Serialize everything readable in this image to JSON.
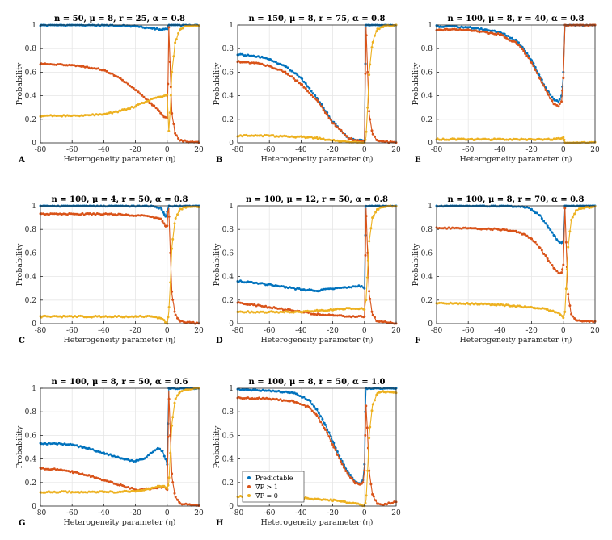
{
  "figure": {
    "colors": {
      "predictable": "#0072BD",
      "grad_gt_1": "#D95319",
      "grad_eq_0": "#EDB120",
      "grid": "#e6e6e6",
      "axis": "#262626"
    },
    "legend": {
      "entries": [
        "Predictable",
        "∇P > 1",
        "∇P = 0"
      ]
    }
  },
  "chart_data": [
    {
      "type": "line",
      "panel": "A",
      "title": "n = 50, μ = 8, r = 25, α = 0.8",
      "xlabel": "Heterogeneity parameter (η)",
      "ylabel": "Probability",
      "xlim": [
        -80,
        20
      ],
      "ylim": [
        0,
        1
      ],
      "xticks": [
        "-80",
        "-60",
        "-40",
        "-20",
        "0",
        "20"
      ],
      "yticks": [
        "0",
        "0.2",
        "0.4",
        "0.6",
        "0.8",
        "1"
      ],
      "series": [
        {
          "name": "Predictable",
          "x": [
            -80,
            -60,
            -40,
            -20,
            -8,
            -3,
            0,
            1,
            3,
            10,
            20
          ],
          "values": [
            1.0,
            1.0,
            1.0,
            0.99,
            0.97,
            0.96,
            0.97,
            1.0,
            1.0,
            1.0,
            1.0
          ]
        },
        {
          "name": "∇P > 1",
          "x": [
            -80,
            -60,
            -40,
            -30,
            -20,
            -10,
            -5,
            -2,
            0,
            0.5,
            1,
            2,
            3,
            5,
            8,
            20
          ],
          "values": [
            0.67,
            0.66,
            0.62,
            0.55,
            0.45,
            0.33,
            0.27,
            0.22,
            0.22,
            0.5,
            0.98,
            0.6,
            0.25,
            0.08,
            0.02,
            0.0
          ]
        },
        {
          "name": "∇P = 0",
          "x": [
            -80,
            -60,
            -40,
            -30,
            -20,
            -10,
            -5,
            0,
            1,
            2,
            3,
            5,
            8,
            12,
            20
          ],
          "values": [
            0.23,
            0.23,
            0.24,
            0.27,
            0.31,
            0.37,
            0.39,
            0.41,
            0.1,
            0.3,
            0.6,
            0.85,
            0.96,
            0.99,
            1.0
          ]
        }
      ]
    },
    {
      "type": "line",
      "panel": "B",
      "title": "n = 150, μ = 8, r = 75, α = 0.8",
      "xlabel": "Heterogeneity parameter (η)",
      "ylabel": "Probability",
      "xlim": [
        -80,
        20
      ],
      "ylim": [
        0,
        1
      ],
      "xticks": [
        "-80",
        "-60",
        "-40",
        "-20",
        "0",
        "20"
      ],
      "yticks": [
        "0",
        "0.2",
        "0.4",
        "0.6",
        "0.8",
        "1"
      ],
      "series": [
        {
          "name": "Predictable",
          "x": [
            -80,
            -70,
            -60,
            -50,
            -40,
            -30,
            -20,
            -10,
            -5,
            0,
            0.5,
            1,
            20
          ],
          "values": [
            0.75,
            0.74,
            0.71,
            0.65,
            0.55,
            0.38,
            0.18,
            0.04,
            0.02,
            0.02,
            0.6,
            1.0,
            1.0
          ]
        },
        {
          "name": "∇P > 1",
          "x": [
            -80,
            -70,
            -60,
            -50,
            -40,
            -30,
            -20,
            -10,
            -5,
            0,
            0.5,
            1,
            2,
            3,
            5,
            8,
            20
          ],
          "values": [
            0.69,
            0.68,
            0.65,
            0.6,
            0.5,
            0.36,
            0.17,
            0.04,
            0.02,
            0.01,
            0.5,
            0.98,
            0.6,
            0.25,
            0.08,
            0.02,
            0.0
          ]
        },
        {
          "name": "∇P = 0",
          "x": [
            -80,
            -60,
            -40,
            -30,
            -20,
            -10,
            0,
            1,
            2,
            3,
            5,
            8,
            12,
            20
          ],
          "values": [
            0.06,
            0.06,
            0.05,
            0.04,
            0.02,
            0.01,
            0.0,
            0.05,
            0.3,
            0.6,
            0.85,
            0.96,
            0.99,
            1.0
          ]
        }
      ]
    },
    {
      "type": "line",
      "panel": "E",
      "title": "n = 100, μ = 8, r = 40, α = 0.8",
      "xlabel": "Heterogeneity parameter (η)",
      "ylabel": "Probability",
      "xlim": [
        -80,
        20
      ],
      "ylim": [
        0,
        1
      ],
      "xticks": [
        "-80",
        "-60",
        "-40",
        "-20",
        "0",
        "20"
      ],
      "yticks": [
        "0",
        "0.2",
        "0.4",
        "0.6",
        "0.8",
        "1"
      ],
      "series": [
        {
          "name": "Predictable",
          "x": [
            -80,
            -60,
            -40,
            -30,
            -25,
            -20,
            -15,
            -10,
            -6,
            -3,
            -1,
            0,
            1,
            20
          ],
          "values": [
            0.99,
            0.98,
            0.94,
            0.87,
            0.8,
            0.7,
            0.57,
            0.44,
            0.37,
            0.35,
            0.4,
            0.6,
            1.0,
            1.0
          ]
        },
        {
          "name": "∇P > 1",
          "x": [
            -80,
            -60,
            -40,
            -30,
            -25,
            -20,
            -15,
            -10,
            -6,
            -3,
            -1,
            0,
            1,
            20
          ],
          "values": [
            0.96,
            0.96,
            0.92,
            0.85,
            0.78,
            0.68,
            0.55,
            0.42,
            0.33,
            0.31,
            0.36,
            0.55,
            1.0,
            1.0
          ]
        },
        {
          "name": "∇P = 0",
          "x": [
            -80,
            -60,
            -40,
            -20,
            -5,
            -1,
            0,
            1,
            3,
            10,
            20
          ],
          "values": [
            0.03,
            0.03,
            0.03,
            0.03,
            0.03,
            0.04,
            0.05,
            0.0,
            0.0,
            0.0,
            0.0
          ]
        }
      ]
    },
    {
      "type": "line",
      "panel": "C",
      "title": "n = 100, μ = 4, r = 50, α = 0.8",
      "xlabel": "Heterogeneity parameter (η)",
      "ylabel": "Probability",
      "xlim": [
        -80,
        20
      ],
      "ylim": [
        0,
        1
      ],
      "xticks": [
        "-80",
        "-60",
        "-40",
        "-20",
        "0",
        "20"
      ],
      "yticks": [
        "0",
        "0.2",
        "0.4",
        "0.6",
        "0.8",
        "1"
      ],
      "series": [
        {
          "name": "Predictable",
          "x": [
            -80,
            -40,
            -10,
            -4,
            -2,
            -1,
            0,
            1,
            20
          ],
          "values": [
            1.0,
            1.0,
            1.0,
            0.98,
            0.94,
            0.91,
            0.95,
            1.0,
            1.0
          ]
        },
        {
          "name": "∇P > 1",
          "x": [
            -80,
            -40,
            -20,
            -10,
            -4,
            -2,
            -1,
            0,
            0.5,
            1,
            2,
            3,
            5,
            8,
            20
          ],
          "values": [
            0.93,
            0.93,
            0.92,
            0.91,
            0.89,
            0.85,
            0.82,
            0.83,
            0.95,
            0.98,
            0.6,
            0.25,
            0.08,
            0.02,
            0.0
          ]
        },
        {
          "name": "∇P = 0",
          "x": [
            -80,
            -40,
            -20,
            -10,
            -5,
            -2,
            0,
            1,
            2,
            3,
            5,
            8,
            12,
            20
          ],
          "values": [
            0.06,
            0.06,
            0.06,
            0.06,
            0.05,
            0.03,
            0.0,
            0.1,
            0.35,
            0.65,
            0.88,
            0.97,
            0.99,
            0.99
          ]
        }
      ]
    },
    {
      "type": "line",
      "panel": "D",
      "title": "n = 100, μ = 12, r = 50, α = 0.8",
      "xlabel": "Heterogeneity parameter (η)",
      "ylabel": "Probability",
      "xlim": [
        -80,
        20
      ],
      "ylim": [
        0,
        1
      ],
      "xticks": [
        "-80",
        "-60",
        "-40",
        "-20",
        "0",
        "20"
      ],
      "yticks": [
        "0",
        "0.2",
        "0.4",
        "0.6",
        "0.8",
        "1"
      ],
      "series": [
        {
          "name": "Predictable",
          "x": [
            -80,
            -70,
            -60,
            -50,
            -40,
            -30,
            -20,
            -10,
            -2,
            0,
            0.5,
            1,
            20
          ],
          "values": [
            0.36,
            0.35,
            0.33,
            0.31,
            0.29,
            0.28,
            0.3,
            0.31,
            0.32,
            0.3,
            0.7,
            1.0,
            1.0
          ]
        },
        {
          "name": "∇P > 1",
          "x": [
            -80,
            -70,
            -60,
            -50,
            -40,
            -30,
            -20,
            -10,
            -2,
            0,
            0.5,
            1,
            2,
            3,
            5,
            8,
            20
          ],
          "values": [
            0.18,
            0.16,
            0.14,
            0.12,
            0.1,
            0.08,
            0.07,
            0.06,
            0.06,
            0.06,
            0.5,
            0.98,
            0.6,
            0.25,
            0.08,
            0.02,
            0.0
          ]
        },
        {
          "name": "∇P = 0",
          "x": [
            -80,
            -60,
            -40,
            -30,
            -20,
            -10,
            -2,
            0,
            1,
            2,
            3,
            5,
            8,
            12,
            20
          ],
          "values": [
            0.1,
            0.1,
            0.1,
            0.11,
            0.12,
            0.13,
            0.13,
            0.12,
            0.2,
            0.45,
            0.7,
            0.9,
            0.97,
            0.99,
            1.0
          ]
        }
      ]
    },
    {
      "type": "line",
      "panel": "F",
      "title": "n = 100, μ = 8, r = 70, α = 0.8",
      "xlabel": "Heterogeneity parameter (η)",
      "ylabel": "Probability",
      "xlim": [
        -80,
        20
      ],
      "ylim": [
        0,
        1
      ],
      "xticks": [
        "-80",
        "-60",
        "-40",
        "-20",
        "0",
        "20"
      ],
      "yticks": [
        "0",
        "0.2",
        "0.4",
        "0.6",
        "0.8",
        "1"
      ],
      "series": [
        {
          "name": "Predictable",
          "x": [
            -80,
            -40,
            -25,
            -20,
            -15,
            -10,
            -6,
            -3,
            -1,
            0,
            1,
            20
          ],
          "values": [
            1.0,
            1.0,
            0.99,
            0.97,
            0.92,
            0.83,
            0.75,
            0.7,
            0.68,
            0.7,
            1.0,
            1.0
          ]
        },
        {
          "name": "∇P > 1",
          "x": [
            -80,
            -60,
            -40,
            -30,
            -25,
            -20,
            -15,
            -10,
            -6,
            -3,
            -1,
            0,
            1,
            2,
            3,
            5,
            8,
            12,
            20
          ],
          "values": [
            0.81,
            0.81,
            0.8,
            0.78,
            0.76,
            0.72,
            0.65,
            0.55,
            0.47,
            0.43,
            0.43,
            0.5,
            0.98,
            0.6,
            0.25,
            0.08,
            0.03,
            0.02,
            0.02
          ]
        },
        {
          "name": "∇P = 0",
          "x": [
            -80,
            -60,
            -40,
            -20,
            -10,
            -5,
            -2,
            0,
            1,
            2,
            3,
            5,
            8,
            12,
            20
          ],
          "values": [
            0.17,
            0.17,
            0.16,
            0.14,
            0.12,
            0.1,
            0.08,
            0.05,
            0.1,
            0.35,
            0.65,
            0.88,
            0.96,
            0.98,
            0.99
          ]
        }
      ]
    },
    {
      "type": "line",
      "panel": "G",
      "title": "n = 100, μ = 8, r = 50, α = 0.6",
      "xlabel": "Heterogeneity parameter (η)",
      "ylabel": "Probability",
      "xlim": [
        -80,
        20
      ],
      "ylim": [
        0,
        1
      ],
      "xticks": [
        "-80",
        "-60",
        "-40",
        "-20",
        "0",
        "20"
      ],
      "yticks": [
        "0",
        "0.2",
        "0.4",
        "0.6",
        "0.8",
        "1"
      ],
      "series": [
        {
          "name": "Predictable",
          "x": [
            -80,
            -70,
            -60,
            -50,
            -40,
            -30,
            -20,
            -15,
            -10,
            -6,
            -3,
            -1,
            0,
            0.5,
            1,
            20
          ],
          "values": [
            0.53,
            0.53,
            0.52,
            0.49,
            0.45,
            0.41,
            0.38,
            0.4,
            0.45,
            0.49,
            0.47,
            0.4,
            0.35,
            0.7,
            1.0,
            1.0
          ]
        },
        {
          "name": "∇P > 1",
          "x": [
            -80,
            -70,
            -60,
            -50,
            -40,
            -30,
            -20,
            -15,
            -10,
            -5,
            -2,
            0,
            0.5,
            1,
            2,
            3,
            5,
            8,
            20
          ],
          "values": [
            0.32,
            0.31,
            0.29,
            0.26,
            0.22,
            0.18,
            0.14,
            0.14,
            0.15,
            0.16,
            0.16,
            0.14,
            0.5,
            0.98,
            0.6,
            0.25,
            0.08,
            0.02,
            0.0
          ]
        },
        {
          "name": "∇P = 0",
          "x": [
            -80,
            -60,
            -40,
            -30,
            -20,
            -10,
            -5,
            -2,
            0,
            1,
            2,
            3,
            5,
            8,
            12,
            20
          ],
          "values": [
            0.12,
            0.12,
            0.12,
            0.12,
            0.13,
            0.15,
            0.17,
            0.17,
            0.15,
            0.2,
            0.45,
            0.7,
            0.9,
            0.97,
            0.99,
            1.0
          ]
        }
      ]
    },
    {
      "type": "line",
      "panel": "H",
      "title": "n = 100, μ = 8, r = 50, α = 1.0",
      "xlabel": "Heterogeneity parameter (η)",
      "ylabel": "Probability",
      "xlim": [
        -80,
        20
      ],
      "ylim": [
        0,
        1
      ],
      "xticks": [
        "-80",
        "-60",
        "-40",
        "-20",
        "0",
        "20"
      ],
      "yticks": [
        "0",
        "0.2",
        "0.4",
        "0.6",
        "0.8",
        "1"
      ],
      "legend": "bottom-left",
      "series": [
        {
          "name": "Predictable",
          "x": [
            -80,
            -60,
            -45,
            -35,
            -30,
            -25,
            -20,
            -15,
            -10,
            -6,
            -3,
            -1,
            0,
            0.5,
            1,
            20
          ],
          "values": [
            0.99,
            0.98,
            0.96,
            0.9,
            0.82,
            0.7,
            0.55,
            0.4,
            0.28,
            0.21,
            0.19,
            0.22,
            0.35,
            0.8,
            1.0,
            1.0
          ]
        },
        {
          "name": "∇P > 1",
          "x": [
            -80,
            -60,
            -45,
            -35,
            -30,
            -25,
            -20,
            -15,
            -10,
            -6,
            -3,
            -1,
            0,
            0.5,
            1,
            2,
            3,
            5,
            8,
            12,
            20
          ],
          "values": [
            0.92,
            0.91,
            0.89,
            0.84,
            0.77,
            0.66,
            0.52,
            0.38,
            0.26,
            0.2,
            0.18,
            0.2,
            0.3,
            0.6,
            0.85,
            0.6,
            0.3,
            0.1,
            0.02,
            0.01,
            0.04
          ]
        },
        {
          "name": "∇P = 0",
          "x": [
            -80,
            -60,
            -40,
            -30,
            -20,
            -10,
            -5,
            -2,
            0,
            1,
            2,
            3,
            5,
            8,
            12,
            20
          ],
          "values": [
            0.08,
            0.08,
            0.07,
            0.06,
            0.05,
            0.03,
            0.02,
            0.01,
            0.0,
            0.05,
            0.3,
            0.6,
            0.85,
            0.96,
            0.97,
            0.96
          ]
        }
      ]
    }
  ]
}
